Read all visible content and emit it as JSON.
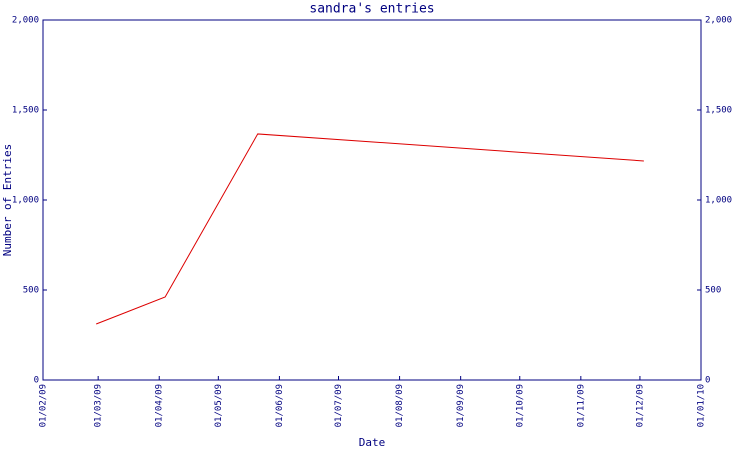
{
  "chart_data": {
    "type": "line",
    "title": "sandra's entries",
    "x_label": "Date",
    "y_label": "Number of Entries",
    "x": [
      "2009-02-28",
      "2009-04-04",
      "2009-05-21",
      "2009-12-03"
    ],
    "series": [
      {
        "name": "sandra",
        "color": "#dd0000",
        "values": [
          311,
          461,
          1367,
          1217
        ]
      }
    ],
    "xlim": [
      "2009-02-01",
      "2010-01-01"
    ],
    "xticks": [
      {
        "value": "2009-02-01",
        "label": "01/02/09"
      },
      {
        "value": "2009-03-01",
        "label": "01/03/09"
      },
      {
        "value": "2009-04-01",
        "label": "01/04/09"
      },
      {
        "value": "2009-05-01",
        "label": "01/05/09"
      },
      {
        "value": "2009-06-01",
        "label": "01/06/09"
      },
      {
        "value": "2009-07-01",
        "label": "01/07/09"
      },
      {
        "value": "2009-08-01",
        "label": "01/08/09"
      },
      {
        "value": "2009-09-01",
        "label": "01/09/09"
      },
      {
        "value": "2009-10-01",
        "label": "01/10/09"
      },
      {
        "value": "2009-11-01",
        "label": "01/11/09"
      },
      {
        "value": "2009-12-01",
        "label": "01/12/09"
      },
      {
        "value": "2010-01-01",
        "label": "01/01/10"
      }
    ],
    "ylim": [
      0,
      2000
    ],
    "yticks": [
      0,
      500,
      {
        "value": 1000,
        "label": "1,000"
      },
      {
        "value": 1500,
        "label": "1,500"
      },
      {
        "value": 2000,
        "label": "2,000"
      }
    ],
    "y2lim": [
      0,
      2000
    ],
    "y2ticks": [
      0,
      500,
      {
        "value": 1000,
        "label": "1,000"
      },
      {
        "value": 1500,
        "label": "1,500"
      },
      {
        "value": 2000,
        "label": "2,000"
      }
    ],
    "grid": false
  }
}
